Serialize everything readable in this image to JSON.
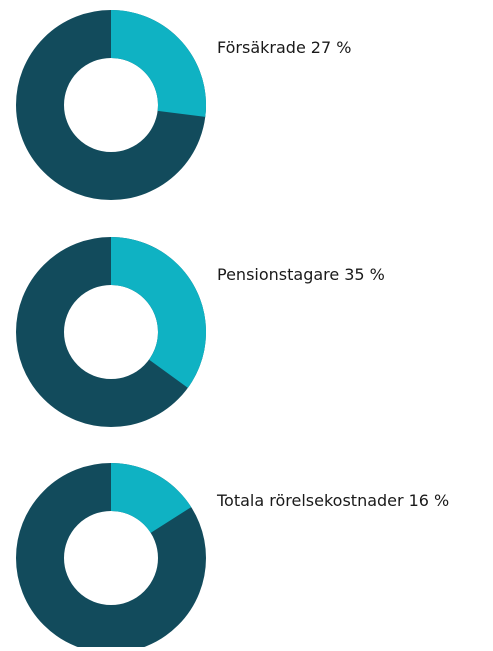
{
  "chart_data": [
    {
      "type": "donut",
      "name": "Försäkrade",
      "value": 27,
      "value_label": "27 %",
      "color": "#0fb2c3",
      "track_color": "#124b5c"
    },
    {
      "type": "donut",
      "name": "Pensionstagare",
      "value": 35,
      "value_label": "35 %",
      "color": "#0fb2c3",
      "track_color": "#124b5c"
    },
    {
      "type": "donut",
      "name": "Totala rörelsekostnader",
      "value": 16,
      "value_label": "16 %",
      "color": "#0fb2c3",
      "track_color": "#124b5c"
    }
  ]
}
